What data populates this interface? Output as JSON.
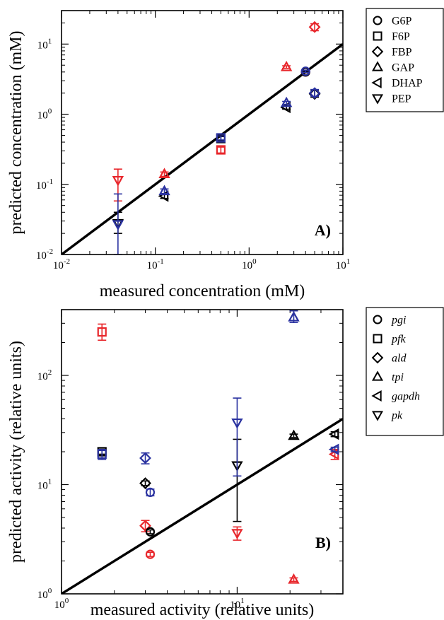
{
  "colors": {
    "red": "#e8262b",
    "blue": "#2a32a0",
    "black": "#000000"
  },
  "chart_data": [
    {
      "type": "scatter",
      "xscale": "log",
      "yscale": "log",
      "xlim": [
        0.01,
        10
      ],
      "ylim": [
        0.01,
        30
      ],
      "xlabel": "measured concentration (mM)",
      "ylabel": "predicted concentration (mM)",
      "panel_label": "A)",
      "x_ticks": [
        {
          "value": 0.01,
          "base": "10",
          "exp": "-2"
        },
        {
          "value": 0.1,
          "base": "10",
          "exp": "-1"
        },
        {
          "value": 1,
          "base": "10",
          "exp": "0"
        },
        {
          "value": 10,
          "base": "10",
          "exp": "1"
        }
      ],
      "y_ticks": [
        {
          "value": 0.01,
          "base": "10",
          "exp": "-2"
        },
        {
          "value": 0.1,
          "base": "10",
          "exp": "-1"
        },
        {
          "value": 1,
          "base": "10",
          "exp": "0"
        },
        {
          "value": 10,
          "base": "10",
          "exp": "1"
        }
      ],
      "identity_line": {
        "from": [
          0.01,
          0.01
        ],
        "to": [
          10,
          10
        ]
      },
      "legend": [
        {
          "marker": "circle",
          "label": "G6P"
        },
        {
          "marker": "square",
          "label": "F6P"
        },
        {
          "marker": "diamond",
          "label": "FBP"
        },
        {
          "marker": "triangle-up",
          "label": "GAP"
        },
        {
          "marker": "triangle-left",
          "label": "DHAP"
        },
        {
          "marker": "triangle-down",
          "label": "PEP"
        }
      ],
      "series": [
        {
          "color": "red",
          "points": [
            {
              "marker": "triangle-down",
              "x": 0.04,
              "y": 0.115,
              "lo": 0.058,
              "hi": 0.165
            },
            {
              "marker": "triangle-up",
              "x": 0.125,
              "y": 0.14,
              "lo": 0.13,
              "hi": 0.15
            },
            {
              "marker": "square",
              "x": 0.5,
              "y": 0.31,
              "lo": 0.28,
              "hi": 0.34
            },
            {
              "marker": "triangle-up",
              "x": 2.5,
              "y": 4.7,
              "lo": 4.5,
              "hi": 4.9
            },
            {
              "marker": "circle",
              "x": 4.0,
              "y": 4.0,
              "lo": 3.9,
              "hi": 4.1
            },
            {
              "marker": "diamond",
              "x": 5.0,
              "y": 17.5,
              "lo": 15.5,
              "hi": 19.5
            }
          ]
        },
        {
          "color": "black",
          "points": [
            {
              "marker": "triangle-down",
              "x": 0.04,
              "y": 0.028,
              "lo": 0.02,
              "hi": 0.04
            },
            {
              "marker": "triangle-left",
              "x": 0.125,
              "y": 0.068,
              "lo": 0.063,
              "hi": 0.073
            },
            {
              "marker": "square",
              "x": 0.5,
              "y": 0.45,
              "lo": 0.42,
              "hi": 0.48
            },
            {
              "marker": "triangle-left",
              "x": 2.5,
              "y": 1.25,
              "lo": 1.18,
              "hi": 1.32
            },
            {
              "marker": "circle",
              "x": 4.0,
              "y": 4.0,
              "lo": 3.9,
              "hi": 4.1
            },
            {
              "marker": "diamond",
              "x": 5.0,
              "y": 1.95,
              "lo": 1.75,
              "hi": 2.2
            }
          ]
        },
        {
          "color": "blue",
          "points": [
            {
              "marker": "triangle-down",
              "x": 0.04,
              "y": 0.027,
              "lo": 0.01,
              "hi": 0.073
            },
            {
              "marker": "triangle-up",
              "x": 0.125,
              "y": 0.08,
              "lo": 0.074,
              "hi": 0.086
            },
            {
              "marker": "square",
              "x": 0.5,
              "y": 0.46,
              "lo": 0.43,
              "hi": 0.49
            },
            {
              "marker": "triangle-up",
              "x": 2.5,
              "y": 1.45,
              "lo": 1.38,
              "hi": 1.52
            },
            {
              "marker": "circle",
              "x": 4.0,
              "y": 4.1,
              "lo": 3.95,
              "hi": 4.25
            },
            {
              "marker": "diamond",
              "x": 5.0,
              "y": 2.0,
              "lo": 1.8,
              "hi": 2.25
            }
          ]
        }
      ]
    },
    {
      "type": "scatter",
      "xscale": "log",
      "yscale": "log",
      "xlim": [
        1,
        40
      ],
      "ylim": [
        1,
        400
      ],
      "xlabel": "measured activity (relative units)",
      "ylabel": "predicted activity (relative units)",
      "panel_label": "B)",
      "x_ticks": [
        {
          "value": 1,
          "base": "10",
          "exp": "0"
        },
        {
          "value": 10,
          "base": "10",
          "exp": "1"
        }
      ],
      "y_ticks": [
        {
          "value": 1,
          "base": "10",
          "exp": "0"
        },
        {
          "value": 10,
          "base": "10",
          "exp": "1"
        },
        {
          "value": 100,
          "base": "10",
          "exp": "2"
        }
      ],
      "identity_line": {
        "from": [
          1,
          1
        ],
        "to": [
          40,
          40
        ]
      },
      "legend": [
        {
          "marker": "circle",
          "label": "pgi"
        },
        {
          "marker": "square",
          "label": "pfk"
        },
        {
          "marker": "diamond",
          "label": "ald"
        },
        {
          "marker": "triangle-up",
          "label": "tpi"
        },
        {
          "marker": "triangle-left",
          "label": "gapdh"
        },
        {
          "marker": "triangle-down",
          "label": "pk"
        }
      ],
      "series": [
        {
          "color": "red",
          "points": [
            {
              "marker": "square",
              "x": 1.7,
              "y": 250,
              "lo": 210,
              "hi": 295
            },
            {
              "marker": "diamond",
              "x": 3.0,
              "y": 4.2,
              "lo": 3.7,
              "hi": 4.7
            },
            {
              "marker": "circle",
              "x": 3.2,
              "y": 2.3,
              "lo": 2.2,
              "hi": 2.4
            },
            {
              "marker": "triangle-down",
              "x": 10,
              "y": 3.6,
              "lo": 3.1,
              "hi": 4.1
            },
            {
              "marker": "triangle-up",
              "x": 21,
              "y": 1.35,
              "lo": 1.3,
              "hi": 1.4
            },
            {
              "marker": "triangle-left",
              "x": 36,
              "y": 19,
              "lo": 17,
              "hi": 21
            }
          ]
        },
        {
          "color": "black",
          "points": [
            {
              "marker": "square",
              "x": 1.7,
              "y": 20,
              "lo": 19,
              "hi": 21
            },
            {
              "marker": "diamond",
              "x": 3.0,
              "y": 10.3,
              "lo": 9.8,
              "hi": 10.8
            },
            {
              "marker": "circle",
              "x": 3.2,
              "y": 3.7,
              "lo": 3.55,
              "hi": 3.85
            },
            {
              "marker": "triangle-down",
              "x": 10,
              "y": 15,
              "lo": 4.6,
              "hi": 26
            },
            {
              "marker": "triangle-up",
              "x": 21,
              "y": 28,
              "lo": 27,
              "hi": 29
            },
            {
              "marker": "triangle-left",
              "x": 36,
              "y": 29,
              "lo": 27.5,
              "hi": 30.5
            }
          ]
        },
        {
          "color": "blue",
          "points": [
            {
              "marker": "square",
              "x": 1.7,
              "y": 19,
              "lo": 17,
              "hi": 21
            },
            {
              "marker": "diamond",
              "x": 3.0,
              "y": 17.5,
              "lo": 15.5,
              "hi": 19.5
            },
            {
              "marker": "circle",
              "x": 3.2,
              "y": 8.5,
              "lo": 7.9,
              "hi": 9.1
            },
            {
              "marker": "triangle-down",
              "x": 10,
              "y": 37,
              "lo": 12,
              "hi": 62
            },
            {
              "marker": "triangle-up",
              "x": 21,
              "y": 340,
              "lo": 305,
              "hi": 390
            },
            {
              "marker": "triangle-left",
              "x": 36,
              "y": 21,
              "lo": 20,
              "hi": 22
            }
          ]
        }
      ]
    }
  ]
}
